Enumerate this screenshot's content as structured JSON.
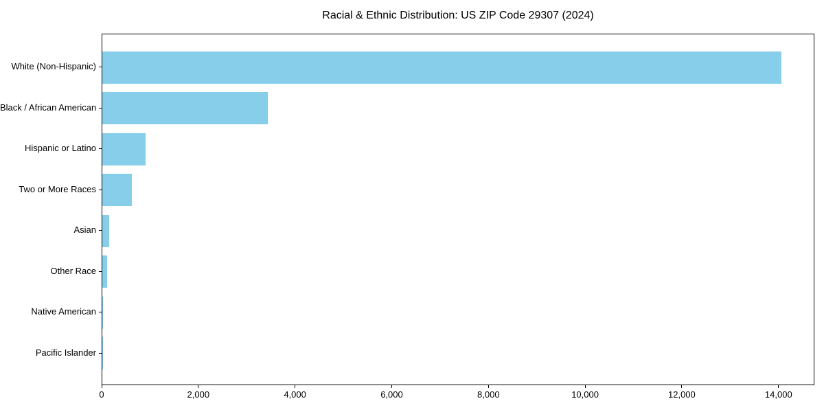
{
  "chart_data": {
    "type": "bar",
    "orientation": "horizontal",
    "title": "Racial & Ethnic Distribution: US ZIP Code 29307 (2024)",
    "categories": [
      "White (Non-Hispanic)",
      "Black / African American",
      "Hispanic or Latino",
      "Two or More Races",
      "Asian",
      "Other Race",
      "Native American",
      "Pacific Islander"
    ],
    "values": [
      14040,
      3420,
      900,
      610,
      145,
      100,
      20,
      10
    ],
    "xlabel": "",
    "ylabel": "",
    "xlim": [
      0,
      14742
    ],
    "x_ticks": [
      0,
      2000,
      4000,
      6000,
      8000,
      10000,
      12000,
      14000
    ],
    "x_tick_labels": [
      "0",
      "2,000",
      "4,000",
      "6,000",
      "8,000",
      "10,000",
      "12,000",
      "14,000"
    ],
    "bar_color": "#87CEEB",
    "grid": false,
    "legend": null,
    "plot_border": "#000000",
    "background": "#ffffff"
  }
}
